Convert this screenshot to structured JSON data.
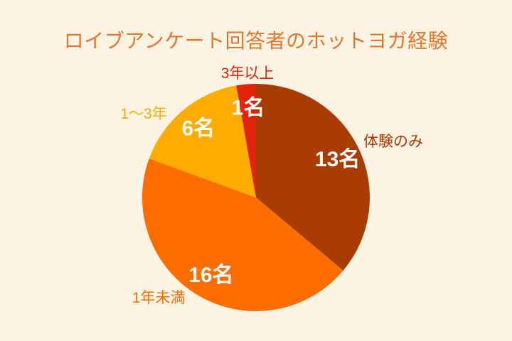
{
  "chart_data": {
    "type": "pie",
    "title": "ロイブアンケート回答者のホットヨガ経験",
    "unit_suffix": "名",
    "slices": [
      {
        "label": "体験のみ",
        "value": 13,
        "value_label": "13名",
        "color": "#A83C02"
      },
      {
        "label": "1年未満",
        "value": 16,
        "value_label": "16名",
        "color": "#FF6D00"
      },
      {
        "label": "1〜3年",
        "value": 6,
        "value_label": "6名",
        "color": "#FFAB00"
      },
      {
        "label": "3年以上",
        "value": 1,
        "value_label": "1名",
        "color": "#E2230B"
      }
    ],
    "start_angle_deg": 0,
    "direction": "clockwise",
    "legend_position": "outside-labels",
    "grid": false
  },
  "style": {
    "background": "#FCF3E2",
    "title_color": "#E2762E",
    "value_label_color": "#FFFFFF"
  }
}
